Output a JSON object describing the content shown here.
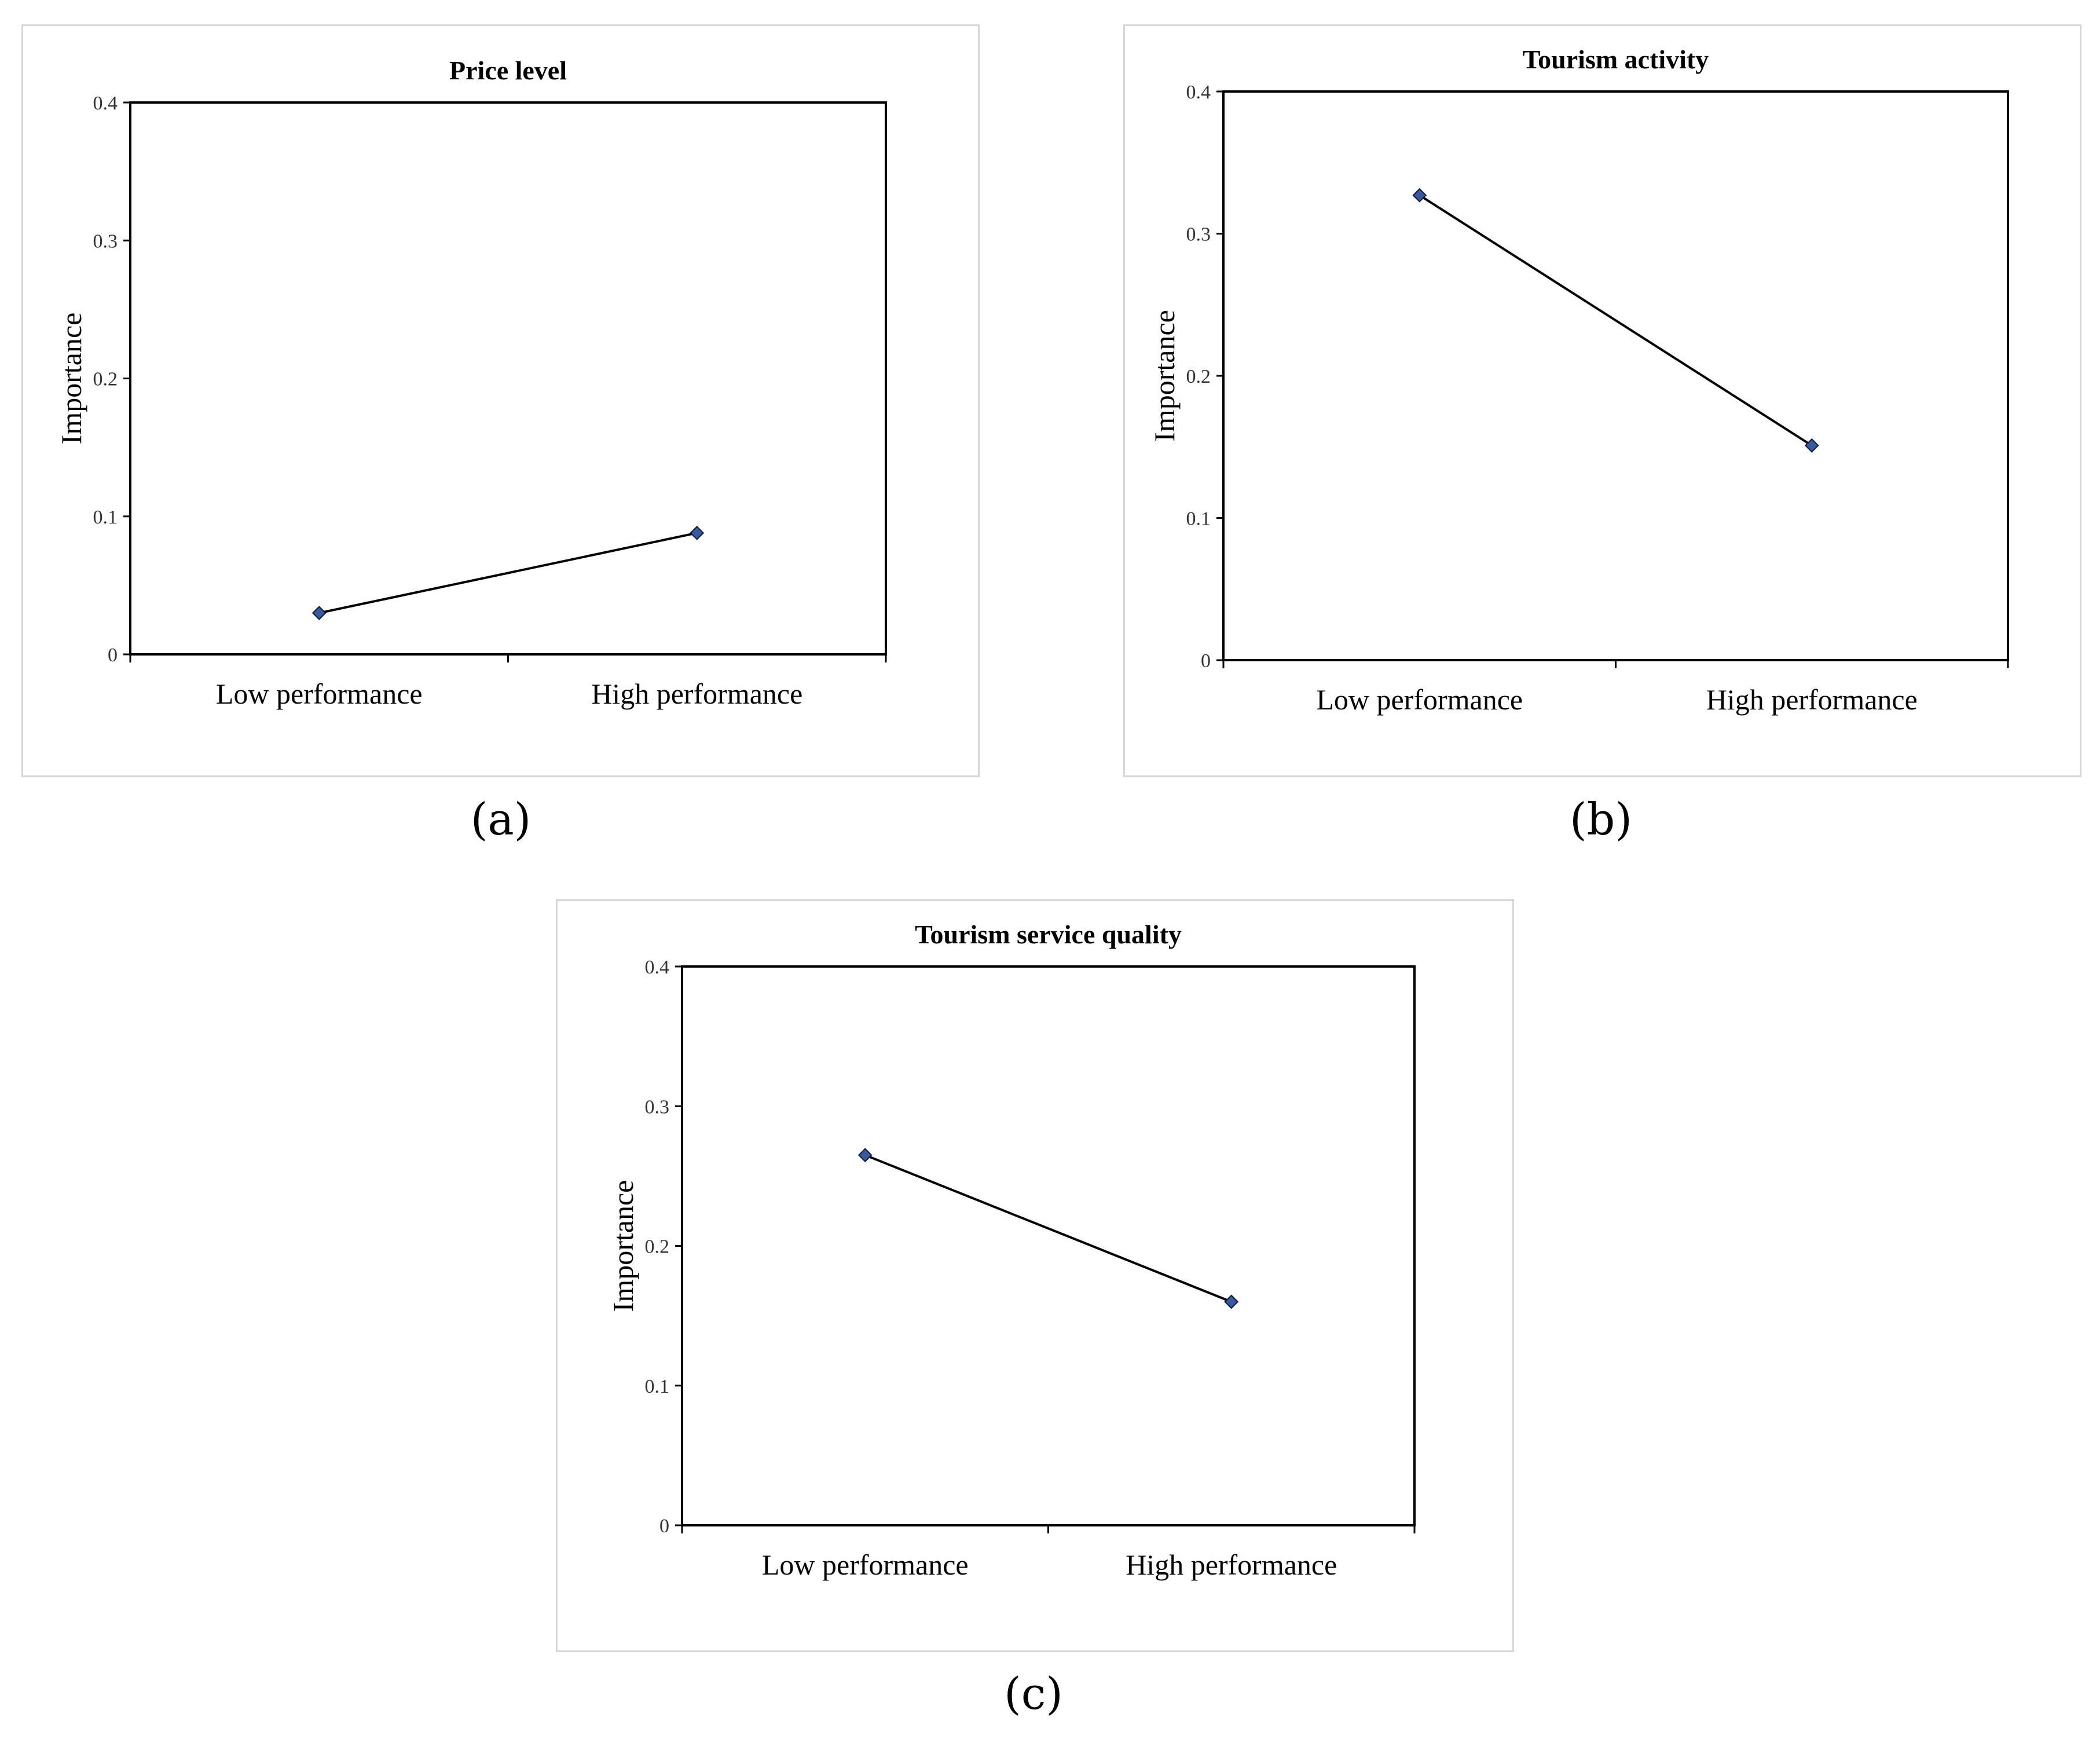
{
  "figure": {
    "captions": [
      "(a)",
      "(b)",
      "(c)"
    ]
  },
  "chart_data": [
    {
      "type": "line",
      "title": "Price level",
      "categories": [
        "Low performance",
        "High performance"
      ],
      "values": [
        0.03,
        0.088
      ],
      "xlabel": "",
      "ylabel": "Importance",
      "ylim": [
        0,
        0.4
      ],
      "yticks": [
        "0",
        "0.1",
        "0.2",
        "0.3",
        "0.4"
      ],
      "grid": false,
      "marker": "diamond",
      "colors": {
        "line": "#000000",
        "marker": "#3a5a9a"
      }
    },
    {
      "type": "line",
      "title": "Tourism activity",
      "categories": [
        "Low performance",
        "High performance"
      ],
      "values": [
        0.327,
        0.151
      ],
      "xlabel": "",
      "ylabel": "Importance",
      "ylim": [
        0,
        0.4
      ],
      "yticks": [
        "0",
        "0.1",
        "0.2",
        "0.3",
        "0.4"
      ],
      "grid": false,
      "marker": "diamond",
      "colors": {
        "line": "#000000",
        "marker": "#3a5a9a"
      }
    },
    {
      "type": "line",
      "title": "Tourism service quality",
      "categories": [
        "Low performance",
        "High performance"
      ],
      "values": [
        0.265,
        0.16
      ],
      "xlabel": "",
      "ylabel": "Importance",
      "ylim": [
        0,
        0.4
      ],
      "yticks": [
        "0",
        "0.1",
        "0.2",
        "0.3",
        "0.4"
      ],
      "grid": false,
      "marker": "diamond",
      "colors": {
        "line": "#000000",
        "marker": "#3a5a9a"
      }
    }
  ]
}
